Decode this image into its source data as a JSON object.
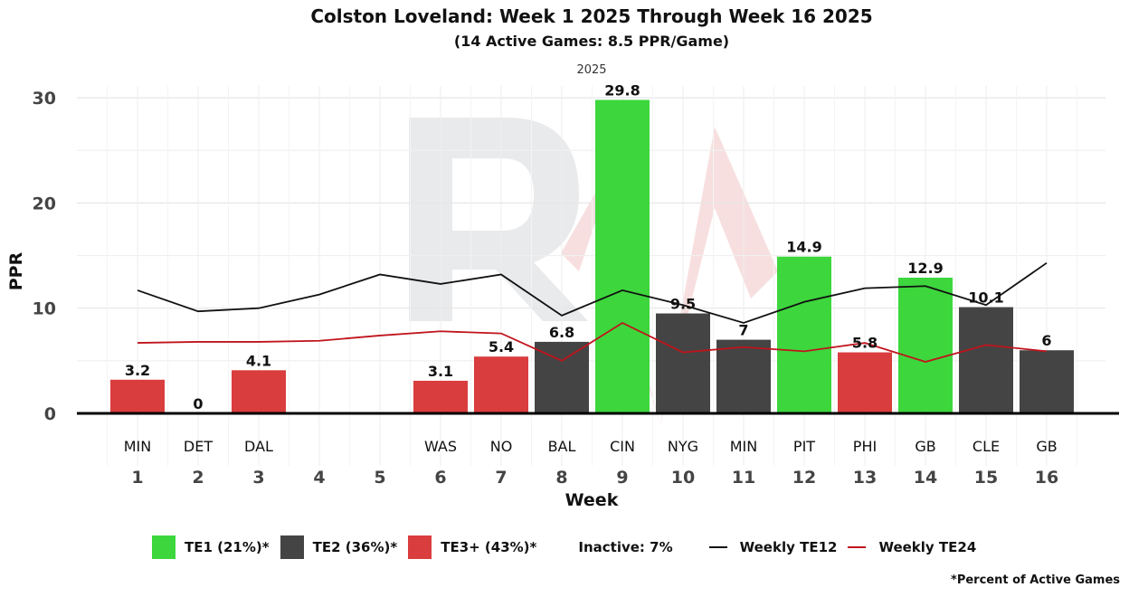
{
  "chart_data": {
    "type": "bar",
    "title": "Colston Loveland: Week 1 2025 Through Week 16 2025",
    "subtitle": "(14 Active Games: 8.5 PPR/Game)",
    "facet_label": "2025",
    "xlabel": "Week",
    "ylabel": "PPR",
    "ylim": [
      0,
      31
    ],
    "yticks": [
      0,
      10,
      20,
      30
    ],
    "grid": true,
    "weeks": [
      "1",
      "2",
      "3",
      "4",
      "5",
      "6",
      "7",
      "8",
      "9",
      "10",
      "11",
      "12",
      "13",
      "14",
      "15",
      "16"
    ],
    "opponents": [
      "MIN",
      "DET",
      "DAL",
      "",
      "",
      "WAS",
      "NO",
      "BAL",
      "CIN",
      "NYG",
      "MIN",
      "PIT",
      "PHI",
      "GB",
      "CLE",
      "GB"
    ],
    "values": [
      3.2,
      0,
      4.1,
      null,
      null,
      3.1,
      5.4,
      6.8,
      29.8,
      9.5,
      7,
      14.9,
      5.8,
      12.9,
      10.1,
      6
    ],
    "value_labels": [
      "3.2",
      "0",
      "4.1",
      "",
      "",
      "3.1",
      "5.4",
      "6.8",
      "29.8",
      "9.5",
      "7",
      "14.9",
      "5.8",
      "12.9",
      "10.1",
      "6"
    ],
    "tiers": [
      "TE3+",
      "TE3+",
      "TE3+",
      null,
      null,
      "TE3+",
      "TE3+",
      "TE2",
      "TE1",
      "TE2",
      "TE2",
      "TE1",
      "TE3+",
      "TE1",
      "TE2",
      "TE2"
    ],
    "tier_colors": {
      "TE1": "#3dd63d",
      "TE2": "#444444",
      "TE3+": "#d93d3d"
    },
    "series": [
      {
        "name": "Weekly TE12",
        "color": "#111111",
        "values": [
          11.7,
          9.7,
          10.0,
          11.3,
          13.2,
          12.3,
          13.2,
          9.3,
          11.7,
          10.3,
          8.6,
          10.6,
          11.9,
          12.1,
          10.3,
          14.3
        ]
      },
      {
        "name": "Weekly TE24",
        "color": "#c0141c",
        "values": [
          6.7,
          6.8,
          6.8,
          6.9,
          7.4,
          7.8,
          7.6,
          5.0,
          8.6,
          5.8,
          6.3,
          5.9,
          6.7,
          4.9,
          6.5,
          5.9
        ]
      }
    ],
    "legend": {
      "position": "bottom",
      "items": [
        {
          "label": "TE1 (21%)*",
          "color": "#3dd63d",
          "kind": "bar"
        },
        {
          "label": "TE2 (36%)*",
          "color": "#444444",
          "kind": "bar"
        },
        {
          "label": "TE3+ (43%)*",
          "color": "#d93d3d",
          "kind": "bar"
        },
        {
          "label": "Inactive: 7%",
          "kind": "text"
        },
        {
          "label": "Weekly TE12",
          "color": "#111111",
          "kind": "line"
        },
        {
          "label": "Weekly TE24",
          "color": "#c0141c",
          "kind": "line"
        }
      ]
    },
    "footnote": "*Percent of Active Games"
  }
}
